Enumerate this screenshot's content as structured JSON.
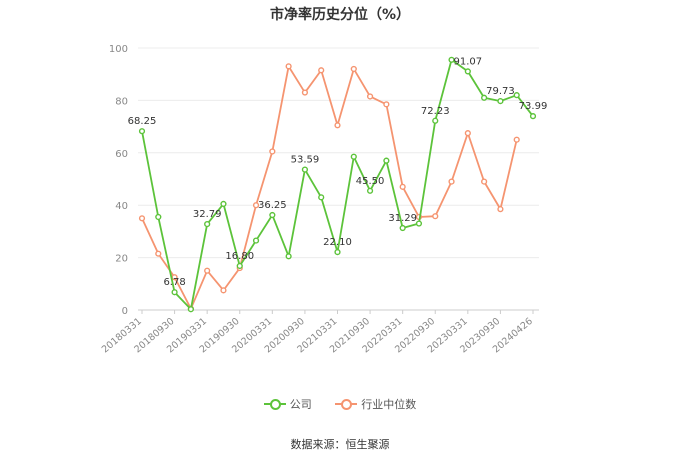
{
  "chart_data": {
    "type": "line",
    "title": "市净率历史分位（%）",
    "ylim": [
      0,
      100
    ],
    "yticks": [
      "0",
      "20",
      "40",
      "60",
      "80",
      "100"
    ],
    "grid": true,
    "legend_position": "bottom",
    "x": [
      "20180331",
      "20180630",
      "20180930",
      "20181231",
      "20190331",
      "20190630",
      "20190930",
      "20191231",
      "20200331",
      "20200630",
      "20200930",
      "20201231",
      "20210331",
      "20210630",
      "20210930",
      "20211231",
      "20220331",
      "20220630",
      "20220930",
      "20221231",
      "20230331",
      "20230630",
      "20230930",
      "20231231",
      "20240426"
    ],
    "xtick_labels": [
      "20180331",
      "20180930",
      "20190331",
      "20190930",
      "20200331",
      "20200930",
      "20210331",
      "20210930",
      "20220331",
      "20220930",
      "20230331",
      "20230930",
      "20240426"
    ],
    "series": [
      {
        "name": "公司",
        "color": "#5cc33a",
        "values": [
          68.25,
          35.5,
          6.78,
          0.3,
          32.79,
          40.5,
          16.8,
          26.5,
          36.25,
          20.5,
          53.59,
          43.0,
          22.1,
          58.5,
          45.5,
          57.0,
          31.29,
          33.0,
          72.23,
          95.5,
          91.07,
          81.0,
          79.73,
          82.0,
          73.99
        ],
        "labels": {
          "0": "68.25",
          "2": "6.78",
          "4": "32.79",
          "6": "16.80",
          "8": "36.25",
          "10": "53.59",
          "12": "22.10",
          "14": "45.50",
          "16": "31.29",
          "18": "72.23",
          "20": "91.07",
          "22": "79.73",
          "24": "73.99"
        }
      },
      {
        "name": "行业中位数",
        "color": "#f59470",
        "values": [
          35.0,
          21.5,
          12.5,
          0.5,
          15.0,
          7.5,
          16.0,
          40.0,
          60.5,
          93.0,
          83.0,
          91.5,
          70.5,
          92.0,
          81.5,
          78.5,
          47.0,
          35.5,
          35.8,
          49.0,
          67.5,
          49.0,
          38.5,
          65.0,
          null
        ]
      }
    ]
  },
  "legend": {
    "company": "公司",
    "industry": "行业中位数"
  },
  "source": "数据来源：恒生聚源"
}
